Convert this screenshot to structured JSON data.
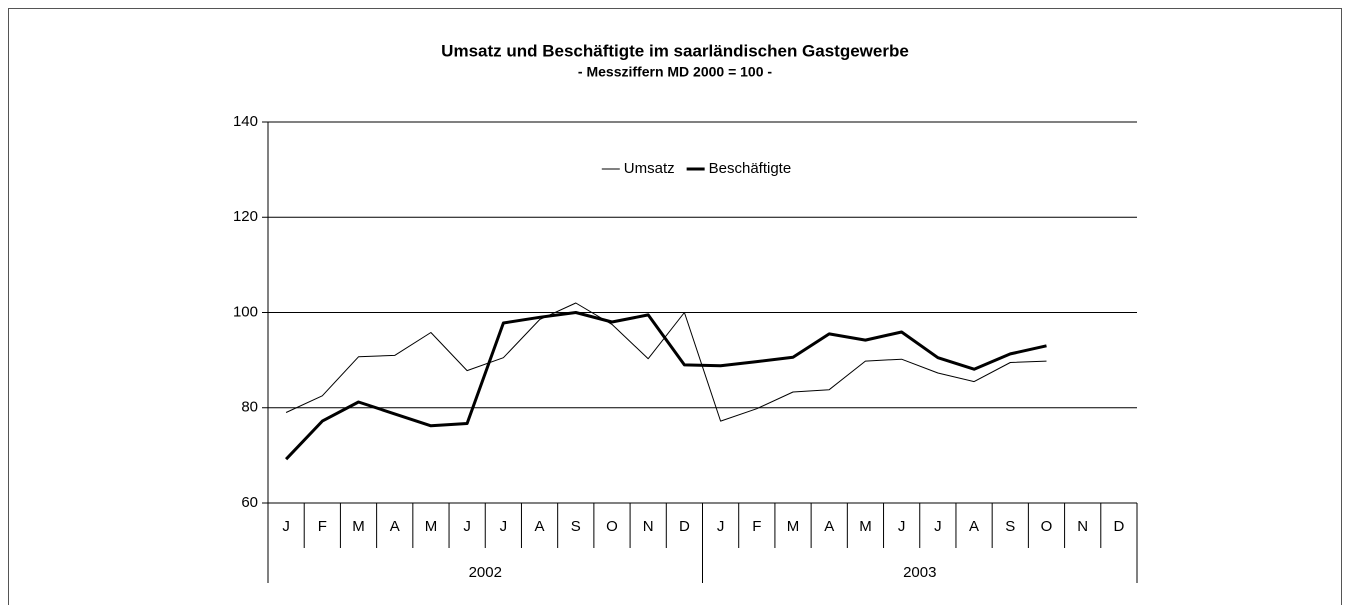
{
  "chart_data": {
    "type": "line",
    "title": "Umsatz und Beschäftigte im saarländischen Gastgewerbe",
    "subtitle": "- Messziffern MD 2000 = 100 -",
    "categories": [
      "J",
      "F",
      "M",
      "A",
      "M",
      "J",
      "J",
      "A",
      "S",
      "O",
      "N",
      "D",
      "J",
      "F",
      "M",
      "A",
      "M",
      "J",
      "J",
      "A",
      "S",
      "O",
      "N",
      "D"
    ],
    "x_groups": [
      "2002",
      "2003"
    ],
    "series": [
      {
        "name": "Umsatz",
        "color": "#000000",
        "width": 1,
        "values": [
          79,
          82.5,
          90.7,
          91,
          95.8,
          87.8,
          90.5,
          98.5,
          102,
          97.5,
          90.3,
          100,
          77.2,
          79.8,
          83.3,
          83.8,
          89.8,
          90.2,
          87.3,
          85.5,
          89.5,
          89.8,
          null,
          null
        ]
      },
      {
        "name": "Beschäftigte",
        "color": "#000000",
        "width": 3,
        "values": [
          69.2,
          77.2,
          81.2,
          78.7,
          76.2,
          76.7,
          97.8,
          99,
          100,
          98,
          99.5,
          89,
          88.8,
          89.7,
          90.6,
          95.5,
          94.2,
          95.9,
          90.5,
          88.1,
          91.3,
          93,
          null,
          null
        ]
      }
    ],
    "ylim": [
      60,
      140
    ],
    "yticks": [
      60,
      80,
      100,
      120,
      140
    ],
    "grid": true,
    "legend": "top"
  }
}
